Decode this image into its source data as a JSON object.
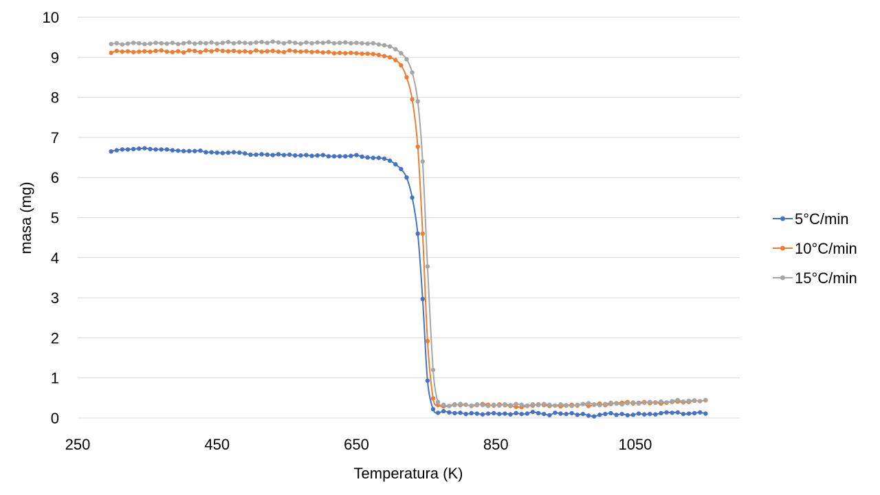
{
  "chart_data": {
    "type": "scatter",
    "title": "",
    "xlabel": "Temperatura  (K)",
    "ylabel": "masa (mg)",
    "xlim": [
      250,
      1200
    ],
    "ylim": [
      0,
      10
    ],
    "xticks": [
      250,
      450,
      650,
      850,
      1050
    ],
    "yticks": [
      0,
      1,
      2,
      3,
      4,
      5,
      6,
      7,
      8,
      9,
      10
    ],
    "grid": "horizontal",
    "legend": "right",
    "series": [
      {
        "name": "5°C/min",
        "color": "#4472c4",
        "points": [
          [
            298,
            6.65
          ],
          [
            306,
            6.68
          ],
          [
            314,
            6.7
          ],
          [
            322,
            6.7
          ],
          [
            330,
            6.71
          ],
          [
            338,
            6.72
          ],
          [
            346,
            6.73
          ],
          [
            354,
            6.71
          ],
          [
            362,
            6.7
          ],
          [
            370,
            6.7
          ],
          [
            378,
            6.7
          ],
          [
            386,
            6.68
          ],
          [
            394,
            6.67
          ],
          [
            402,
            6.66
          ],
          [
            410,
            6.66
          ],
          [
            418,
            6.66
          ],
          [
            426,
            6.67
          ],
          [
            434,
            6.63
          ],
          [
            442,
            6.63
          ],
          [
            450,
            6.62
          ],
          [
            458,
            6.61
          ],
          [
            466,
            6.62
          ],
          [
            474,
            6.63
          ],
          [
            482,
            6.62
          ],
          [
            490,
            6.6
          ],
          [
            498,
            6.57
          ],
          [
            506,
            6.57
          ],
          [
            514,
            6.58
          ],
          [
            522,
            6.57
          ],
          [
            530,
            6.56
          ],
          [
            538,
            6.58
          ],
          [
            546,
            6.56
          ],
          [
            554,
            6.57
          ],
          [
            562,
            6.55
          ],
          [
            570,
            6.55
          ],
          [
            578,
            6.56
          ],
          [
            586,
            6.54
          ],
          [
            594,
            6.55
          ],
          [
            602,
            6.56
          ],
          [
            610,
            6.53
          ],
          [
            618,
            6.53
          ],
          [
            626,
            6.53
          ],
          [
            634,
            6.53
          ],
          [
            642,
            6.54
          ],
          [
            650,
            6.56
          ],
          [
            658,
            6.52
          ],
          [
            666,
            6.5
          ],
          [
            674,
            6.49
          ],
          [
            682,
            6.49
          ],
          [
            690,
            6.47
          ],
          [
            698,
            6.42
          ],
          [
            706,
            6.33
          ],
          [
            714,
            6.21
          ],
          [
            722,
            6.0
          ],
          [
            730,
            5.5
          ],
          [
            738,
            4.6
          ],
          [
            745,
            2.97
          ],
          [
            752,
            0.93
          ],
          [
            760,
            0.22
          ],
          [
            767,
            0.13
          ],
          [
            775,
            0.17
          ],
          [
            783,
            0.14
          ],
          [
            791,
            0.12
          ],
          [
            799,
            0.13
          ],
          [
            807,
            0.1
          ],
          [
            815,
            0.12
          ],
          [
            823,
            0.11
          ],
          [
            831,
            0.09
          ],
          [
            839,
            0.11
          ],
          [
            847,
            0.12
          ],
          [
            855,
            0.1
          ],
          [
            863,
            0.11
          ],
          [
            871,
            0.09
          ],
          [
            879,
            0.12
          ],
          [
            887,
            0.1
          ],
          [
            895,
            0.11
          ],
          [
            903,
            0.15
          ],
          [
            911,
            0.12
          ],
          [
            919,
            0.1
          ],
          [
            927,
            0.07
          ],
          [
            935,
            0.13
          ],
          [
            943,
            0.11
          ],
          [
            951,
            0.1
          ],
          [
            959,
            0.12
          ],
          [
            967,
            0.08
          ],
          [
            975,
            0.1
          ],
          [
            983,
            0.06
          ],
          [
            991,
            0.04
          ],
          [
            999,
            0.08
          ],
          [
            1007,
            0.1
          ],
          [
            1015,
            0.12
          ],
          [
            1023,
            0.08
          ],
          [
            1031,
            0.1
          ],
          [
            1039,
            0.07
          ],
          [
            1047,
            0.08
          ],
          [
            1055,
            0.11
          ],
          [
            1063,
            0.09
          ],
          [
            1071,
            0.1
          ],
          [
            1079,
            0.09
          ],
          [
            1087,
            0.12
          ],
          [
            1095,
            0.14
          ],
          [
            1103,
            0.13
          ],
          [
            1111,
            0.14
          ],
          [
            1119,
            0.1
          ],
          [
            1127,
            0.11
          ],
          [
            1135,
            0.12
          ],
          [
            1143,
            0.14
          ],
          [
            1151,
            0.11
          ]
        ]
      },
      {
        "name": "10°C/min",
        "color": "#ed7d31",
        "points": [
          [
            298,
            9.11
          ],
          [
            306,
            9.16
          ],
          [
            314,
            9.14
          ],
          [
            322,
            9.15
          ],
          [
            330,
            9.13
          ],
          [
            338,
            9.14
          ],
          [
            346,
            9.15
          ],
          [
            354,
            9.14
          ],
          [
            362,
            9.16
          ],
          [
            370,
            9.17
          ],
          [
            378,
            9.14
          ],
          [
            386,
            9.13
          ],
          [
            394,
            9.15
          ],
          [
            402,
            9.12
          ],
          [
            410,
            9.17
          ],
          [
            418,
            9.16
          ],
          [
            426,
            9.13
          ],
          [
            434,
            9.17
          ],
          [
            442,
            9.15
          ],
          [
            450,
            9.18
          ],
          [
            458,
            9.16
          ],
          [
            466,
            9.15
          ],
          [
            474,
            9.16
          ],
          [
            482,
            9.14
          ],
          [
            490,
            9.15
          ],
          [
            498,
            9.13
          ],
          [
            506,
            9.17
          ],
          [
            514,
            9.14
          ],
          [
            522,
            9.15
          ],
          [
            530,
            9.16
          ],
          [
            538,
            9.14
          ],
          [
            546,
            9.13
          ],
          [
            554,
            9.17
          ],
          [
            562,
            9.15
          ],
          [
            570,
            9.14
          ],
          [
            578,
            9.15
          ],
          [
            586,
            9.13
          ],
          [
            594,
            9.14
          ],
          [
            602,
            9.12
          ],
          [
            610,
            9.13
          ],
          [
            618,
            9.1
          ],
          [
            626,
            9.11
          ],
          [
            634,
            9.1
          ],
          [
            642,
            9.11
          ],
          [
            650,
            9.1
          ],
          [
            658,
            9.09
          ],
          [
            666,
            9.09
          ],
          [
            674,
            9.08
          ],
          [
            682,
            9.06
          ],
          [
            690,
            9.03
          ],
          [
            698,
            9.0
          ],
          [
            706,
            8.93
          ],
          [
            714,
            8.8
          ],
          [
            722,
            8.5
          ],
          [
            730,
            7.95
          ],
          [
            738,
            6.77
          ],
          [
            745,
            4.6
          ],
          [
            752,
            1.92
          ],
          [
            760,
            0.49
          ],
          [
            767,
            0.32
          ],
          [
            775,
            0.29
          ],
          [
            783,
            0.3
          ],
          [
            791,
            0.34
          ],
          [
            799,
            0.32
          ],
          [
            807,
            0.33
          ],
          [
            815,
            0.3
          ],
          [
            823,
            0.32
          ],
          [
            831,
            0.35
          ],
          [
            839,
            0.33
          ],
          [
            847,
            0.31
          ],
          [
            855,
            0.34
          ],
          [
            863,
            0.32
          ],
          [
            871,
            0.3
          ],
          [
            879,
            0.28
          ],
          [
            887,
            0.27
          ],
          [
            895,
            0.3
          ],
          [
            903,
            0.31
          ],
          [
            911,
            0.34
          ],
          [
            919,
            0.32
          ],
          [
            927,
            0.3
          ],
          [
            935,
            0.31
          ],
          [
            943,
            0.29
          ],
          [
            951,
            0.31
          ],
          [
            959,
            0.33
          ],
          [
            967,
            0.31
          ],
          [
            975,
            0.35
          ],
          [
            983,
            0.3
          ],
          [
            991,
            0.33
          ],
          [
            999,
            0.36
          ],
          [
            1007,
            0.32
          ],
          [
            1015,
            0.35
          ],
          [
            1023,
            0.37
          ],
          [
            1031,
            0.38
          ],
          [
            1039,
            0.4
          ],
          [
            1047,
            0.36
          ],
          [
            1055,
            0.38
          ],
          [
            1063,
            0.4
          ],
          [
            1071,
            0.37
          ],
          [
            1079,
            0.39
          ],
          [
            1087,
            0.36
          ],
          [
            1095,
            0.38
          ],
          [
            1103,
            0.4
          ],
          [
            1111,
            0.41
          ],
          [
            1119,
            0.39
          ],
          [
            1127,
            0.4
          ],
          [
            1135,
            0.43
          ],
          [
            1143,
            0.42
          ],
          [
            1151,
            0.44
          ]
        ]
      },
      {
        "name": "15°C/min",
        "color": "#a5a5a5",
        "points": [
          [
            298,
            9.33
          ],
          [
            306,
            9.35
          ],
          [
            314,
            9.32
          ],
          [
            322,
            9.34
          ],
          [
            330,
            9.36
          ],
          [
            338,
            9.35
          ],
          [
            346,
            9.33
          ],
          [
            354,
            9.34
          ],
          [
            362,
            9.36
          ],
          [
            370,
            9.35
          ],
          [
            378,
            9.34
          ],
          [
            386,
            9.36
          ],
          [
            394,
            9.33
          ],
          [
            402,
            9.35
          ],
          [
            410,
            9.37
          ],
          [
            418,
            9.34
          ],
          [
            426,
            9.36
          ],
          [
            434,
            9.35
          ],
          [
            442,
            9.37
          ],
          [
            450,
            9.34
          ],
          [
            458,
            9.36
          ],
          [
            466,
            9.38
          ],
          [
            474,
            9.35
          ],
          [
            482,
            9.37
          ],
          [
            490,
            9.36
          ],
          [
            498,
            9.35
          ],
          [
            506,
            9.37
          ],
          [
            514,
            9.38
          ],
          [
            522,
            9.36
          ],
          [
            530,
            9.39
          ],
          [
            538,
            9.37
          ],
          [
            546,
            9.35
          ],
          [
            554,
            9.38
          ],
          [
            562,
            9.36
          ],
          [
            570,
            9.34
          ],
          [
            578,
            9.37
          ],
          [
            586,
            9.35
          ],
          [
            594,
            9.37
          ],
          [
            602,
            9.36
          ],
          [
            610,
            9.38
          ],
          [
            618,
            9.35
          ],
          [
            626,
            9.36
          ],
          [
            634,
            9.37
          ],
          [
            642,
            9.35
          ],
          [
            650,
            9.36
          ],
          [
            658,
            9.35
          ],
          [
            666,
            9.34
          ],
          [
            674,
            9.35
          ],
          [
            682,
            9.32
          ],
          [
            690,
            9.3
          ],
          [
            698,
            9.27
          ],
          [
            706,
            9.2
          ],
          [
            714,
            9.1
          ],
          [
            722,
            8.95
          ],
          [
            730,
            8.62
          ],
          [
            738,
            7.9
          ],
          [
            745,
            6.4
          ],
          [
            752,
            3.78
          ],
          [
            760,
            1.2
          ],
          [
            767,
            0.4
          ],
          [
            775,
            0.33
          ],
          [
            783,
            0.3
          ],
          [
            791,
            0.32
          ],
          [
            799,
            0.35
          ],
          [
            807,
            0.33
          ],
          [
            815,
            0.31
          ],
          [
            823,
            0.34
          ],
          [
            831,
            0.32
          ],
          [
            839,
            0.3
          ],
          [
            847,
            0.33
          ],
          [
            855,
            0.31
          ],
          [
            863,
            0.34
          ],
          [
            871,
            0.32
          ],
          [
            879,
            0.35
          ],
          [
            887,
            0.33
          ],
          [
            895,
            0.31
          ],
          [
            903,
            0.34
          ],
          [
            911,
            0.32
          ],
          [
            919,
            0.35
          ],
          [
            927,
            0.33
          ],
          [
            935,
            0.31
          ],
          [
            943,
            0.34
          ],
          [
            951,
            0.32
          ],
          [
            959,
            0.3
          ],
          [
            967,
            0.33
          ],
          [
            975,
            0.35
          ],
          [
            983,
            0.37
          ],
          [
            991,
            0.34
          ],
          [
            999,
            0.32
          ],
          [
            1007,
            0.35
          ],
          [
            1015,
            0.38
          ],
          [
            1023,
            0.36
          ],
          [
            1031,
            0.34
          ],
          [
            1039,
            0.37
          ],
          [
            1047,
            0.39
          ],
          [
            1055,
            0.36
          ],
          [
            1063,
            0.38
          ],
          [
            1071,
            0.4
          ],
          [
            1079,
            0.38
          ],
          [
            1087,
            0.41
          ],
          [
            1095,
            0.39
          ],
          [
            1103,
            0.42
          ],
          [
            1111,
            0.45
          ],
          [
            1119,
            0.41
          ],
          [
            1127,
            0.43
          ],
          [
            1135,
            0.44
          ],
          [
            1143,
            0.42
          ],
          [
            1151,
            0.45
          ]
        ]
      }
    ]
  }
}
